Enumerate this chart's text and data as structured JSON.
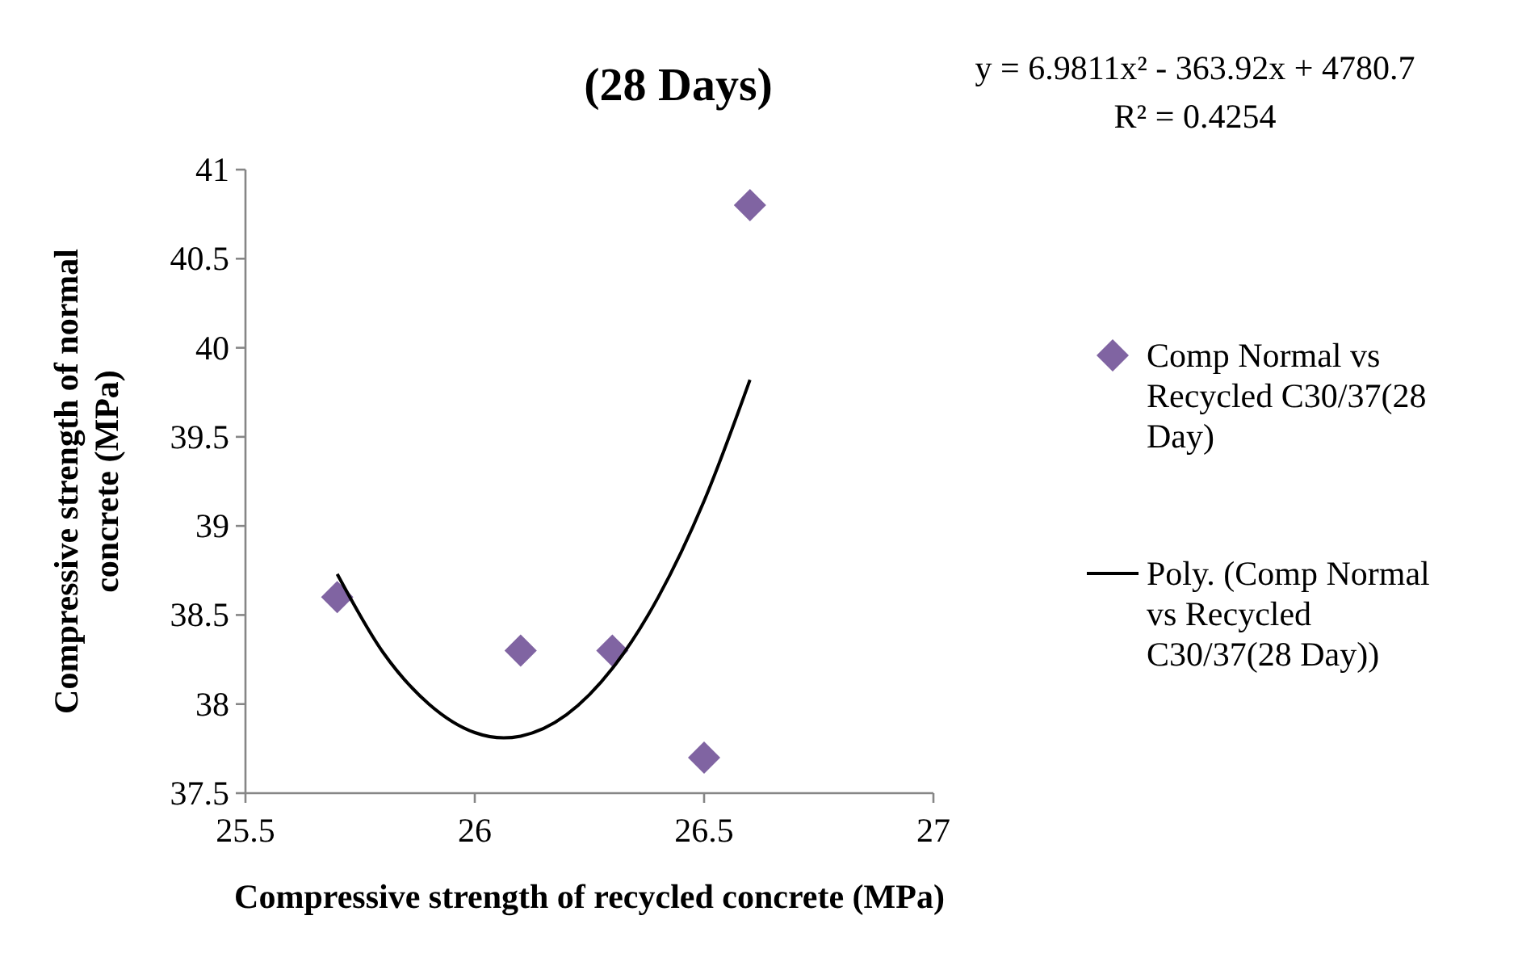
{
  "chart_data": {
    "type": "scatter",
    "title": "(28 Days)",
    "xlabel": "Compressive strength of recycled concrete (MPa)",
    "ylabel": "Compressive strength of normal concrete (MPa)",
    "annotations": [
      "y = 6.9811x² - 363.92x + 4780.7",
      "R² = 0.4254"
    ],
    "series": [
      {
        "name": "Comp Normal vs Recycled C30/37(28 Day)",
        "color": "#8064a2",
        "marker": "diamond",
        "x": [
          25.7,
          26.1,
          26.3,
          26.5,
          26.6
        ],
        "values": [
          38.6,
          38.3,
          38.3,
          37.7,
          40.8
        ]
      },
      {
        "name": "Poly. (Comp Normal vs Recycled C30/37(28 Day))",
        "type": "line",
        "color": "#000000",
        "marker": "none",
        "line_style": "solid",
        "x": [
          25.7,
          25.8,
          25.9,
          26.0,
          26.063,
          26.1,
          26.2,
          26.3,
          26.4,
          26.5,
          26.6
        ],
        "values": [
          38.73,
          38.29,
          38.0,
          37.84,
          37.81,
          37.82,
          37.94,
          38.2,
          38.6,
          39.14,
          39.82
        ]
      }
    ],
    "xlim": [
      25.5,
      27
    ],
    "xticks": [
      25.5,
      26,
      26.5,
      27
    ],
    "ylim": [
      37.5,
      41
    ],
    "yticks": [
      37.5,
      38,
      38.5,
      39,
      39.5,
      40,
      40.5,
      41
    ],
    "grid": false,
    "legend": "right"
  }
}
